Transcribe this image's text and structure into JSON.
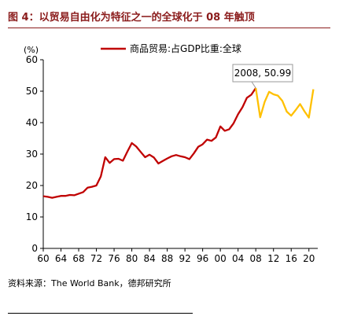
{
  "title": "图 4：以贸易自由化为特征之一的全球化于 08 年触顶",
  "source": "资料来源：The World Bank，德邦研究所",
  "colors": {
    "title": "#8b1c1c",
    "series_pre": "#c00000",
    "series_post": "#ffc000",
    "annotation_border": "#999999"
  },
  "chart_data": {
    "type": "line",
    "ylabel": "(%)",
    "ylim": [
      0,
      60
    ],
    "yticks": [
      0,
      10,
      20,
      30,
      40,
      50,
      60
    ],
    "xlim": [
      1960,
      2022
    ],
    "xtick_labels": [
      "60",
      "64",
      "68",
      "72",
      "76",
      "80",
      "84",
      "88",
      "92",
      "96",
      "00",
      "04",
      "08",
      "12",
      "16",
      "20"
    ],
    "xtick_years": [
      1960,
      1964,
      1968,
      1972,
      1976,
      1980,
      1984,
      1988,
      1992,
      1996,
      2000,
      2004,
      2008,
      2012,
      2016,
      2020
    ],
    "grid": false,
    "legend_position": "top",
    "series": [
      {
        "name": "商品贸易:占GDP比重:全球",
        "x": [
          1960,
          1961,
          1962,
          1963,
          1964,
          1965,
          1966,
          1967,
          1968,
          1969,
          1970,
          1971,
          1972,
          1973,
          1974,
          1975,
          1976,
          1977,
          1978,
          1979,
          1980,
          1981,
          1982,
          1983,
          1984,
          1985,
          1986,
          1987,
          1988,
          1989,
          1990,
          1991,
          1992,
          1993,
          1994,
          1995,
          1996,
          1997,
          1998,
          1999,
          2000,
          2001,
          2002,
          2003,
          2004,
          2005,
          2006,
          2007,
          2008
        ],
        "y": [
          16.6,
          16.4,
          16.1,
          16.4,
          16.7,
          16.7,
          17.0,
          16.9,
          17.4,
          17.9,
          19.3,
          19.6,
          20.0,
          22.9,
          29.0,
          27.2,
          28.4,
          28.5,
          27.9,
          30.8,
          33.5,
          32.4,
          30.7,
          29.0,
          29.8,
          28.9,
          27.0,
          27.8,
          28.6,
          29.3,
          29.7,
          29.3,
          29.0,
          28.4,
          30.2,
          32.3,
          33.1,
          34.6,
          34.2,
          35.3,
          38.8,
          37.4,
          37.9,
          39.8,
          42.7,
          44.9,
          47.9,
          48.9,
          50.99
        ]
      },
      {
        "x": [
          2008,
          2009,
          2010,
          2011,
          2012,
          2013,
          2014,
          2015,
          2016,
          2017,
          2018,
          2019,
          2020,
          2021
        ],
        "y": [
          50.99,
          41.7,
          46.6,
          49.8,
          49.0,
          48.6,
          46.9,
          43.5,
          42.2,
          44.0,
          45.9,
          43.6,
          41.6,
          50.6
        ]
      }
    ],
    "annotation": {
      "text": "2008, 50.99",
      "x": 2008,
      "y": 50.99
    }
  }
}
